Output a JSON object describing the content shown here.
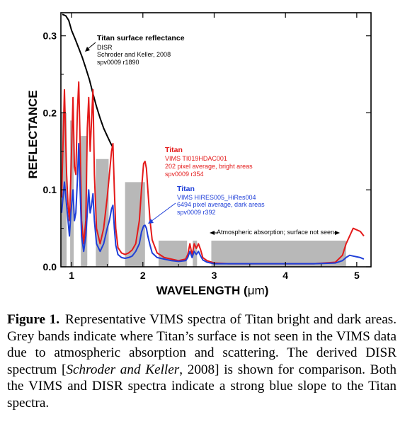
{
  "chart_data": {
    "type": "line",
    "xlabel_text": "WAVELENGTH (",
    "xlabel_unit": "μm",
    "xlabel_close": ")",
    "ylabel": "REFLECTANCE",
    "xlim": [
      0.85,
      5.2
    ],
    "ylim": [
      0,
      0.33
    ],
    "x_ticks": [
      "1",
      "2",
      "3",
      "4",
      "5"
    ],
    "y_ticks": [
      "0.0",
      "0.1",
      "0.2",
      "0.3"
    ],
    "grey_bands": [
      {
        "x0": 0.85,
        "x1": 0.93,
        "top": 0.2
      },
      {
        "x0": 0.98,
        "x1": 1.03,
        "top": 0.19
      },
      {
        "x0": 1.13,
        "x1": 1.22,
        "top": 0.17
      },
      {
        "x0": 1.34,
        "x1": 1.52,
        "top": 0.14
      },
      {
        "x0": 1.75,
        "x1": 2.03,
        "top": 0.11
      },
      {
        "x0": 2.22,
        "x1": 2.62,
        "top": 0.034
      },
      {
        "x0": 2.7,
        "x1": 2.76,
        "top": 0.034
      },
      {
        "x0": 2.96,
        "x1": 4.85,
        "top": 0.034
      }
    ],
    "series": [
      {
        "color": "#000000",
        "x": [
          0.87,
          0.92,
          0.96,
          1.0,
          1.05,
          1.1,
          1.15,
          1.2,
          1.25,
          1.3,
          1.35,
          1.4,
          1.45,
          1.5,
          1.55,
          1.58
        ],
        "y": [
          0.328,
          0.326,
          0.32,
          0.307,
          0.296,
          0.284,
          0.272,
          0.258,
          0.243,
          0.225,
          0.208,
          0.193,
          0.18,
          0.17,
          0.16,
          0.155
        ]
      },
      {
        "color": "#e41a1a",
        "x": [
          0.86,
          0.9,
          0.93,
          0.95,
          0.97,
          0.99,
          1.02,
          1.04,
          1.06,
          1.08,
          1.1,
          1.12,
          1.14,
          1.17,
          1.2,
          1.22,
          1.24,
          1.26,
          1.28,
          1.3,
          1.32,
          1.35,
          1.4,
          1.45,
          1.5,
          1.53,
          1.56,
          1.58,
          1.6,
          1.62,
          1.65,
          1.7,
          1.75,
          1.8,
          1.85,
          1.9,
          1.95,
          1.98,
          2.01,
          2.03,
          2.05,
          2.07,
          2.1,
          2.13,
          2.2,
          2.3,
          2.4,
          2.5,
          2.6,
          2.63,
          2.66,
          2.69,
          2.72,
          2.75,
          2.78,
          2.81,
          2.84,
          2.9,
          3.0,
          3.2,
          3.5,
          3.8,
          4.1,
          4.4,
          4.7,
          4.8,
          4.85,
          4.9,
          4.95,
          5.0,
          5.05,
          5.1
        ],
        "y": [
          0.09,
          0.23,
          0.12,
          0.08,
          0.06,
          0.12,
          0.22,
          0.13,
          0.12,
          0.2,
          0.24,
          0.16,
          0.06,
          0.03,
          0.06,
          0.18,
          0.22,
          0.15,
          0.19,
          0.23,
          0.12,
          0.05,
          0.03,
          0.05,
          0.09,
          0.12,
          0.15,
          0.16,
          0.1,
          0.05,
          0.025,
          0.018,
          0.016,
          0.018,
          0.022,
          0.03,
          0.06,
          0.1,
          0.134,
          0.137,
          0.128,
          0.1,
          0.06,
          0.035,
          0.018,
          0.012,
          0.01,
          0.008,
          0.01,
          0.016,
          0.03,
          0.015,
          0.03,
          0.024,
          0.03,
          0.022,
          0.012,
          0.008,
          0.005,
          0.004,
          0.004,
          0.004,
          0.004,
          0.004,
          0.006,
          0.015,
          0.03,
          0.04,
          0.05,
          0.048,
          0.046,
          0.04
        ]
      },
      {
        "color": "#1f3fd8",
        "x": [
          0.86,
          0.9,
          0.93,
          0.95,
          0.97,
          0.99,
          1.02,
          1.04,
          1.06,
          1.08,
          1.1,
          1.12,
          1.14,
          1.17,
          1.2,
          1.22,
          1.24,
          1.26,
          1.28,
          1.3,
          1.32,
          1.35,
          1.4,
          1.45,
          1.5,
          1.53,
          1.56,
          1.58,
          1.6,
          1.62,
          1.65,
          1.7,
          1.75,
          1.8,
          1.85,
          1.9,
          1.95,
          1.98,
          2.01,
          2.03,
          2.05,
          2.07,
          2.1,
          2.13,
          2.2,
          2.3,
          2.4,
          2.5,
          2.6,
          2.63,
          2.66,
          2.69,
          2.72,
          2.75,
          2.78,
          2.81,
          2.84,
          2.9,
          3.0,
          3.2,
          3.5,
          3.8,
          4.1,
          4.4,
          4.7,
          4.8,
          4.85,
          4.9,
          4.95,
          5.0,
          5.05,
          5.1
        ],
        "y": [
          0.07,
          0.11,
          0.08,
          0.06,
          0.04,
          0.07,
          0.1,
          0.06,
          0.07,
          0.11,
          0.16,
          0.1,
          0.04,
          0.02,
          0.04,
          0.07,
          0.1,
          0.07,
          0.08,
          0.095,
          0.06,
          0.03,
          0.02,
          0.03,
          0.05,
          0.06,
          0.075,
          0.08,
          0.05,
          0.028,
          0.016,
          0.012,
          0.011,
          0.012,
          0.014,
          0.02,
          0.03,
          0.045,
          0.053,
          0.054,
          0.05,
          0.04,
          0.028,
          0.018,
          0.012,
          0.01,
          0.008,
          0.007,
          0.008,
          0.012,
          0.02,
          0.012,
          0.02,
          0.016,
          0.02,
          0.014,
          0.009,
          0.006,
          0.004,
          0.004,
          0.004,
          0.004,
          0.004,
          0.004,
          0.005,
          0.008,
          0.012,
          0.015,
          0.014,
          0.013,
          0.012,
          0.01
        ]
      }
    ],
    "annotations": {
      "disr": {
        "title": "Titan surface reflectance",
        "lines": [
          "DISR",
          "Schroder and Keller, 2008",
          "spv0009 r1890"
        ]
      },
      "vims_bright": {
        "title": "Titan",
        "lines": [
          "VIMS TI019HDAC001",
          "202 pixel average, bright areas",
          "spv0009 r354"
        ]
      },
      "vims_dark": {
        "title": "Titan",
        "lines": [
          "VIMS HIRES005_HiRes004",
          "6494 pixel average, dark areas",
          "spv0009 r392"
        ]
      },
      "absorption": "Atmospheric absorption; surface not seen"
    }
  },
  "caption": {
    "label": "Figure 1.",
    "text_1": "Representative VIMS spectra of Titan bright and dark areas. Grey bands indicate where Titan’s surface is not seen in the VIMS data due to atmospheric absorption and scattering. The derived DISR spectrum [",
    "citation_author": "Schroder and Keller",
    "citation_year": ", 2008]",
    "text_2": " is shown for comparison. Both the VIMS and DISR spectra indicate a strong blue slope to the Titan spectra."
  }
}
